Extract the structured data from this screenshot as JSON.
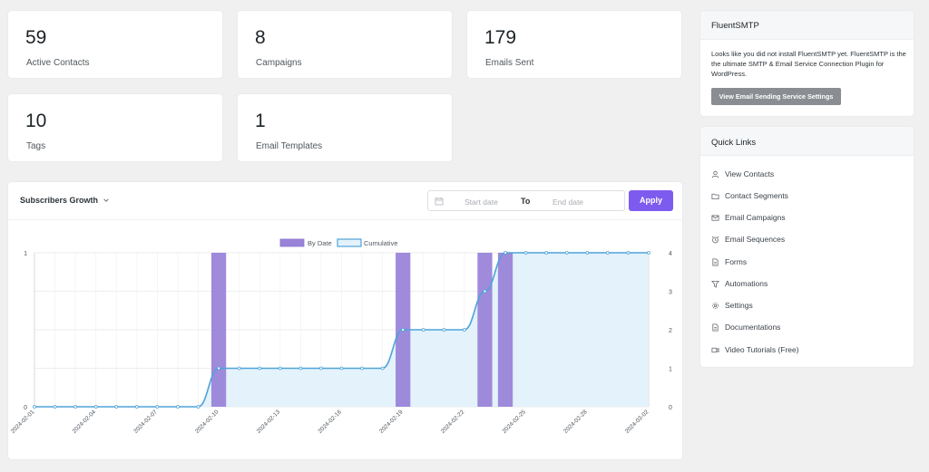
{
  "stats": [
    {
      "value": "59",
      "label": "Active Contacts"
    },
    {
      "value": "8",
      "label": "Campaigns"
    },
    {
      "value": "179",
      "label": "Emails Sent"
    },
    {
      "value": "10",
      "label": "Tags"
    },
    {
      "value": "1",
      "label": "Email Templates"
    }
  ],
  "chart_panel": {
    "dropdown_label": "Subscribers Growth",
    "start_placeholder": "Start date",
    "to_label": "To",
    "end_placeholder": "End date",
    "apply_label": "Apply"
  },
  "fluentsmtp": {
    "title": "FluentSMTP",
    "text": "Looks like you did not install FluentSMTP yet. FluentSMTP is the the ultimate SMTP & Email Service Connection Plugin for WordPress.",
    "button_label": "View Email Sending Service Settings"
  },
  "quick_links": {
    "title": "Quick Links",
    "items": [
      {
        "label": "View Contacts",
        "icon": "user-icon"
      },
      {
        "label": "Contact Segments",
        "icon": "folder-icon"
      },
      {
        "label": "Email Campaigns",
        "icon": "envelope-icon"
      },
      {
        "label": "Email Sequences",
        "icon": "alarm-clock-icon"
      },
      {
        "label": "Forms",
        "icon": "document-icon"
      },
      {
        "label": "Automations",
        "icon": "funnel-icon"
      },
      {
        "label": "Settings",
        "icon": "gear-icon"
      },
      {
        "label": "Documentations",
        "icon": "document-icon"
      },
      {
        "label": "Video Tutorials (Free)",
        "icon": "video-icon"
      }
    ]
  },
  "chart_data": {
    "type": "bar",
    "categories": [
      "2024-02-01",
      "2024-02-02",
      "2024-02-03",
      "2024-02-04",
      "2024-02-05",
      "2024-02-06",
      "2024-02-07",
      "2024-02-08",
      "2024-02-09",
      "2024-02-10",
      "2024-02-11",
      "2024-02-12",
      "2024-02-13",
      "2024-02-14",
      "2024-02-15",
      "2024-02-16",
      "2024-02-17",
      "2024-02-18",
      "2024-02-19",
      "2024-02-20",
      "2024-02-21",
      "2024-02-22",
      "2024-02-23",
      "2024-02-24",
      "2024-02-25",
      "2024-02-26",
      "2024-02-27",
      "2024-02-28",
      "2024-02-29",
      "2024-03-01",
      "2024-03-02"
    ],
    "tick_labels": [
      "2024-02-01",
      "2024-02-04",
      "2024-02-07",
      "2024-02-10",
      "2024-02-13",
      "2024-02-16",
      "2024-02-19",
      "2024-02-22",
      "2024-02-25",
      "2024-02-28",
      "2024-03-02"
    ],
    "series": [
      {
        "name": "By Date",
        "type": "bar",
        "axis": "left",
        "color": "#9a84d9",
        "values": [
          0,
          0,
          0,
          0,
          0,
          0,
          0,
          0,
          0,
          1,
          0,
          0,
          0,
          0,
          0,
          0,
          0,
          0,
          1,
          0,
          0,
          0,
          1,
          1,
          0,
          0,
          0,
          0,
          0,
          0,
          0
        ]
      },
      {
        "name": "Cumulative",
        "type": "area",
        "axis": "right",
        "color": "#4fa3d8",
        "fill": "#e3f2fb",
        "values": [
          0,
          0,
          0,
          0,
          0,
          0,
          0,
          0,
          0,
          1,
          1,
          1,
          1,
          1,
          1,
          1,
          1,
          1,
          2,
          2,
          2,
          2,
          3,
          4,
          4,
          4,
          4,
          4,
          4,
          4,
          4
        ]
      }
    ],
    "left_axis": {
      "ylim": [
        0,
        1
      ],
      "ticks": [
        "0",
        "1"
      ]
    },
    "right_axis": {
      "ylim": [
        0,
        4
      ],
      "ticks": [
        "0",
        "1",
        "2",
        "3",
        "4"
      ]
    },
    "legend_position": "top",
    "grid": true
  }
}
